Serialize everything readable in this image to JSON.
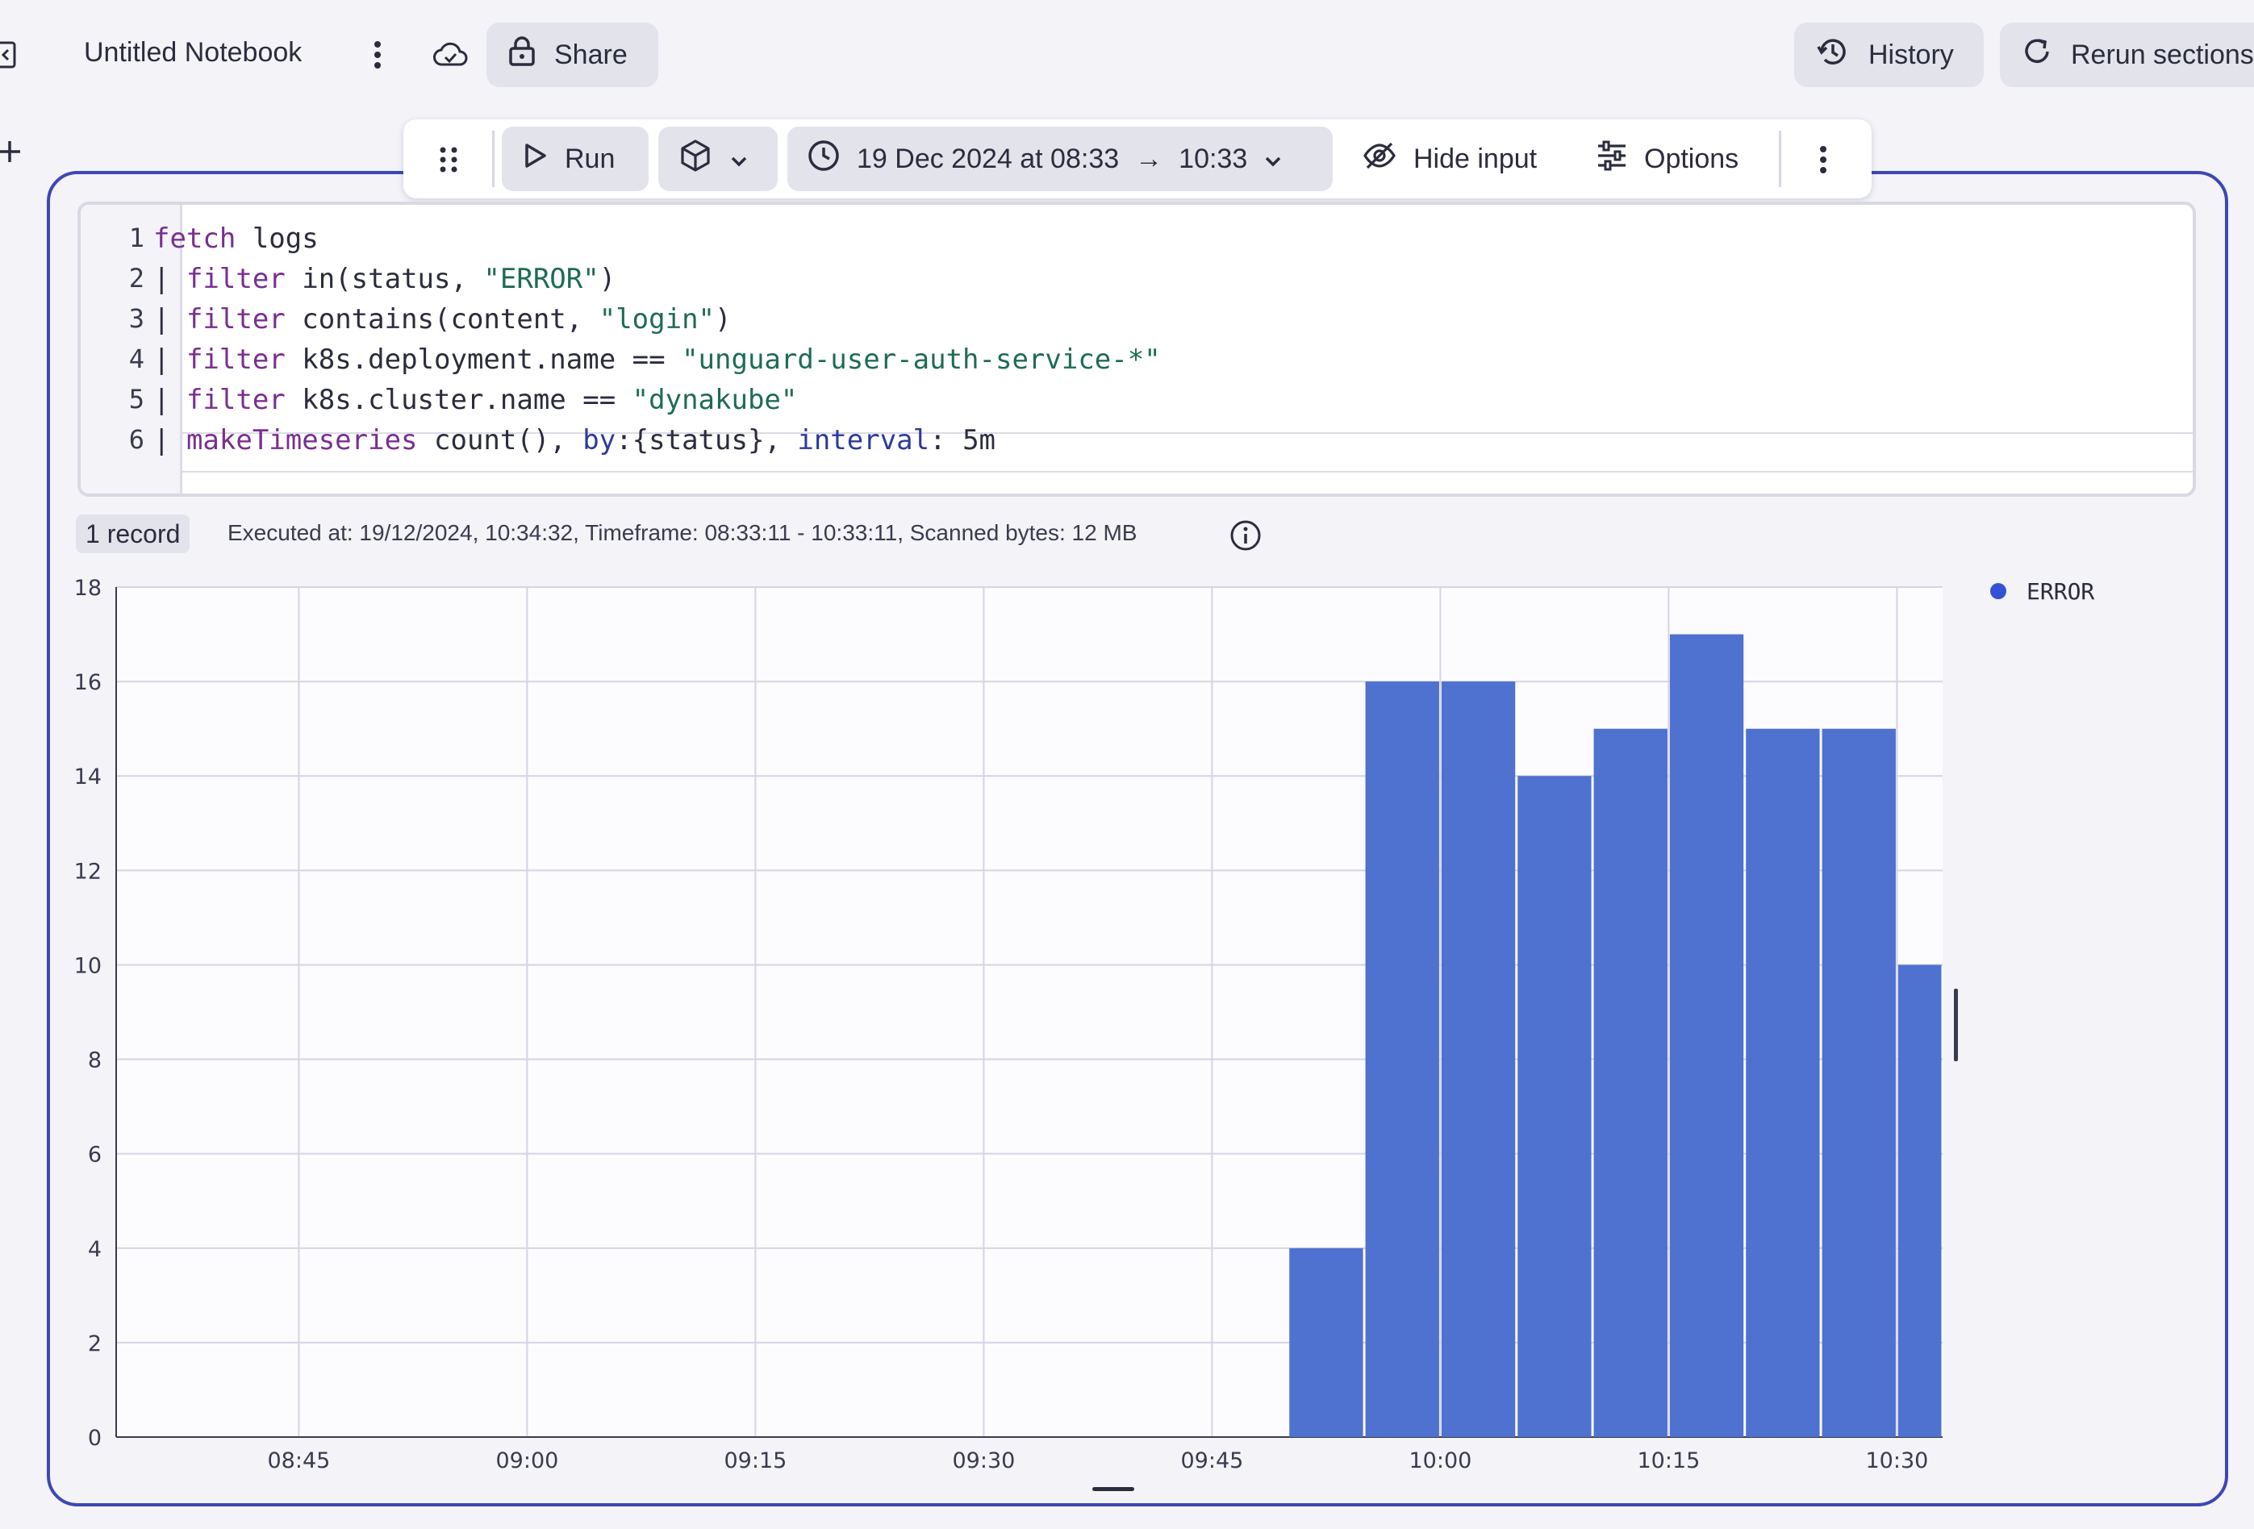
{
  "topbar": {
    "notebook_title": "Untitled Notebook",
    "share_label": "Share",
    "history_label": "History",
    "rerun_label": "Rerun sections"
  },
  "toolbar": {
    "run_label": "Run",
    "timeframe_label": "19 Dec 2024 at 08:33",
    "timeframe_arrow": "→",
    "timeframe_end": "10:33",
    "hide_input_label": "Hide input",
    "options_label": "Options"
  },
  "editor": {
    "line_numbers": [
      "1",
      "2",
      "3",
      "4",
      "5",
      "6"
    ],
    "lines": [
      [
        {
          "t": "fetch",
          "c": "kw"
        },
        {
          "t": " logs",
          "c": ""
        }
      ],
      [
        {
          "t": "| ",
          "c": ""
        },
        {
          "t": "filter",
          "c": "kw"
        },
        {
          "t": " in(status, ",
          "c": ""
        },
        {
          "t": "\"ERROR\"",
          "c": "str"
        },
        {
          "t": ")",
          "c": ""
        }
      ],
      [
        {
          "t": "| ",
          "c": ""
        },
        {
          "t": "filter",
          "c": "kw"
        },
        {
          "t": " contains(content, ",
          "c": ""
        },
        {
          "t": "\"login\"",
          "c": "str"
        },
        {
          "t": ")",
          "c": ""
        }
      ],
      [
        {
          "t": "| ",
          "c": ""
        },
        {
          "t": "filter",
          "c": "kw"
        },
        {
          "t": " k8s.deployment.name == ",
          "c": ""
        },
        {
          "t": "\"unguard-user-auth-service-*\"",
          "c": "str"
        }
      ],
      [
        {
          "t": "| ",
          "c": ""
        },
        {
          "t": "filter",
          "c": "kw"
        },
        {
          "t": " k8s.cluster.name == ",
          "c": ""
        },
        {
          "t": "\"dynakube\"",
          "c": "str"
        }
      ],
      [
        {
          "t": "| ",
          "c": ""
        },
        {
          "t": "makeTimeseries",
          "c": "kw"
        },
        {
          "t": " count(), ",
          "c": ""
        },
        {
          "t": "by",
          "c": "fn"
        },
        {
          "t": ":{status}, ",
          "c": ""
        },
        {
          "t": "interval",
          "c": "fn"
        },
        {
          "t": ": 5m",
          "c": ""
        }
      ]
    ]
  },
  "result": {
    "record_badge": "1 record",
    "meta_text": "Executed at: 19/12/2024, 10:34:32, Timeframe: 08:33:11 - 10:33:11, Scanned bytes: 12 MB"
  },
  "colors": {
    "accent": "#3d47b4",
    "bar": "#4f71cf",
    "legend_dot": "#3552d6"
  },
  "chart_data": {
    "type": "bar",
    "title": "",
    "xlabel": "",
    "ylabel": "",
    "ylim": [
      0,
      18
    ],
    "yticks": [
      0,
      2,
      4,
      6,
      8,
      10,
      12,
      14,
      16,
      18
    ],
    "x_range": [
      "08:33",
      "10:33"
    ],
    "xticks": [
      "08:45",
      "09:00",
      "09:15",
      "09:30",
      "09:45",
      "10:00",
      "10:15",
      "10:30"
    ],
    "interval": "5m",
    "grid": true,
    "legend_position": "top-right",
    "series": [
      {
        "name": "ERROR",
        "bins": [
          {
            "start": "09:50",
            "end": "09:55",
            "value": 4
          },
          {
            "start": "09:55",
            "end": "10:00",
            "value": 16
          },
          {
            "start": "10:00",
            "end": "10:05",
            "value": 16
          },
          {
            "start": "10:05",
            "end": "10:10",
            "value": 14
          },
          {
            "start": "10:10",
            "end": "10:15",
            "value": 15
          },
          {
            "start": "10:15",
            "end": "10:20",
            "value": 17
          },
          {
            "start": "10:20",
            "end": "10:25",
            "value": 15
          },
          {
            "start": "10:25",
            "end": "10:30",
            "value": 15
          },
          {
            "start": "10:30",
            "end": "10:33",
            "value": 10
          }
        ]
      }
    ]
  }
}
